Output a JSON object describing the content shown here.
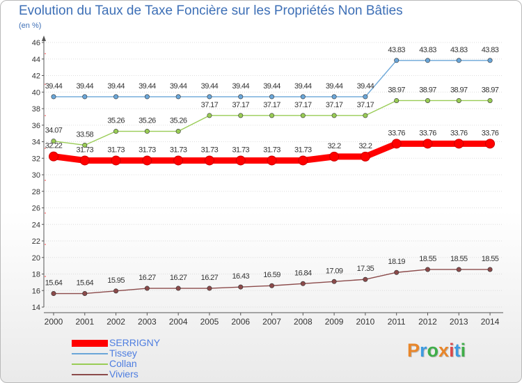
{
  "header": {
    "title": "Evolution du Taux de Taxe Foncière sur les Propriétés Non Bâties",
    "unit": "(en %)"
  },
  "brand": {
    "letters": [
      "P",
      "r",
      "o",
      "x",
      "i",
      "t",
      "i"
    ],
    "colors": [
      "#e8862a",
      "#3d9be0",
      "#3fae49",
      "#e8862a",
      "#d94a4a",
      "#3d9be0",
      "#3fae49"
    ]
  },
  "chart_data": {
    "type": "line",
    "title": "Evolution du Taux de Taxe Foncière sur les Propriétés Non Bâties",
    "ylabel": "(en %)",
    "xlabel": "",
    "ylim": [
      14,
      46
    ],
    "yticks": [
      "14",
      "16",
      "18",
      "20",
      "22",
      "24",
      "26",
      "28",
      "30",
      "32",
      "34",
      "36",
      "38",
      "40",
      "42",
      "44",
      "46"
    ],
    "categories": [
      "2000",
      "2001",
      "2002",
      "2003",
      "2004",
      "2005",
      "2006",
      "2007",
      "2008",
      "2009",
      "2010",
      "2011",
      "2012",
      "2013",
      "2014"
    ],
    "grid": "horizontal",
    "legend_position": "bottom-left",
    "series": [
      {
        "name": "SERRIGNY",
        "color": "#ff0000",
        "emphasis": "thick",
        "values": [
          32.22,
          31.73,
          31.73,
          31.73,
          31.73,
          31.73,
          31.73,
          31.73,
          31.73,
          32.2,
          32.2,
          33.76,
          33.76,
          33.76,
          33.76
        ],
        "labels": [
          "32.22",
          "31.73",
          "31.73",
          "31.73",
          "31.73",
          "31.73",
          "31.73",
          "31.73",
          "31.73",
          "32.2",
          "32.2",
          "33.76",
          "33.76",
          "33.76",
          "33.76"
        ]
      },
      {
        "name": "Tissey",
        "color": "#6aa6d8",
        "emphasis": "normal",
        "values": [
          39.44,
          39.44,
          39.44,
          39.44,
          39.44,
          39.44,
          39.44,
          39.44,
          39.44,
          39.44,
          39.44,
          43.83,
          43.83,
          43.83,
          43.83
        ],
        "labels": [
          "39.44",
          "39.44",
          "39.44",
          "39.44",
          "39.44",
          "39.44",
          "39.44",
          "39.44",
          "39.44",
          "39.44",
          "39.44",
          "43.83",
          "43.83",
          "43.83",
          "43.83"
        ]
      },
      {
        "name": "Collan",
        "color": "#99cc55",
        "emphasis": "normal",
        "values": [
          34.07,
          33.58,
          35.26,
          35.26,
          35.26,
          37.17,
          37.17,
          37.17,
          37.17,
          37.17,
          37.17,
          38.97,
          38.97,
          38.97,
          38.97
        ],
        "labels": [
          "34.07",
          "33.58",
          "35.26",
          "35.26",
          "35.26",
          "37.17",
          "37.17",
          "37.17",
          "37.17",
          "37.17",
          "37.17",
          "38.97",
          "38.97",
          "38.97",
          "38.97"
        ]
      },
      {
        "name": "Viviers",
        "color": "#8b4a4a",
        "emphasis": "normal",
        "values": [
          15.64,
          15.64,
          15.95,
          16.27,
          16.27,
          16.27,
          16.43,
          16.59,
          16.84,
          17.09,
          17.35,
          18.19,
          18.55,
          18.55,
          18.55
        ],
        "labels": [
          "15.64",
          "15.64",
          "15.95",
          "16.27",
          "16.27",
          "16.27",
          "16.43",
          "16.59",
          "16.84",
          "17.09",
          "17.35",
          "18.19",
          "18.55",
          "18.55",
          "18.55"
        ]
      }
    ]
  }
}
